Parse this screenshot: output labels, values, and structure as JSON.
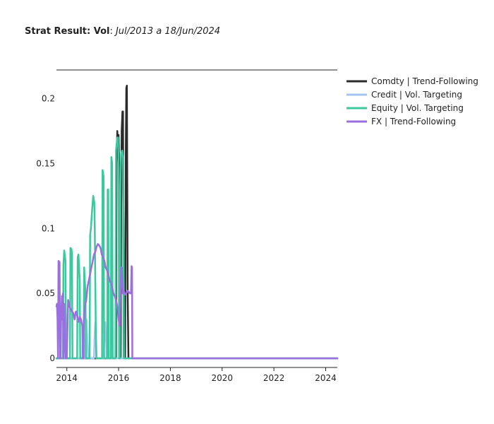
{
  "title": {
    "bold": "Strat Result: Vol",
    "separator": ": ",
    "italic": "Jul/2013 a 18/Jun/2024"
  },
  "chart_data": {
    "type": "line",
    "title": "Strat Result: Vol: Jul/2013 a 18/Jun/2024",
    "xlabel": "",
    "ylabel": "",
    "xlim": [
      2013.6,
      2024.45
    ],
    "ylim": [
      -0.007,
      0.222
    ],
    "x_ticks": [
      2014,
      2016,
      2018,
      2020,
      2022,
      2024
    ],
    "x_tick_labels": [
      "2014",
      "2016",
      "2018",
      "2020",
      "2022",
      "2024"
    ],
    "y_ticks": [
      0,
      0.05,
      0.1,
      0.15,
      0.2
    ],
    "y_tick_labels": [
      "0",
      "0.05",
      "0.1",
      "0.15",
      "0.2"
    ],
    "grid": false,
    "legend_position": "top-right",
    "series": [
      {
        "name": "Comdty | Trend-Following",
        "color": "#2b2b2b",
        "x": [
          2013.6,
          2015.9,
          2015.92,
          2015.95,
          2015.98,
          2016.0,
          2016.02,
          2016.04,
          2016.08,
          2016.1,
          2016.12,
          2016.15,
          2016.17,
          2016.2,
          2016.22,
          2016.25,
          2016.28,
          2016.3,
          2016.32,
          2016.35,
          2016.38,
          2016.4,
          2024.45
        ],
        "y": [
          0,
          0,
          0.15,
          0.175,
          0.16,
          0.172,
          0.15,
          0,
          0,
          0.11,
          0.175,
          0.19,
          0.19,
          0,
          0,
          0,
          0.16,
          0.208,
          0.21,
          0.05,
          0,
          0,
          0
        ]
      },
      {
        "name": "Credit | Vol. Targeting",
        "color": "#a6c4f0",
        "x": [
          2013.6,
          2014.7,
          2014.72,
          2014.76,
          2014.8,
          2014.82,
          2015.05,
          2015.07,
          2015.1,
          2015.13,
          2015.15,
          2015.42,
          2015.44,
          2015.48,
          2015.52,
          2015.54,
          2024.45
        ],
        "y": [
          0,
          0,
          0.012,
          0.03,
          0.012,
          0,
          0,
          0.015,
          0.028,
          0.014,
          0,
          0,
          0.012,
          0.028,
          0.012,
          0,
          0
        ]
      },
      {
        "name": "Equity | Vol. Targeting",
        "color": "#3cc89f",
        "x": [
          2013.6,
          2013.85,
          2013.87,
          2013.9,
          2013.95,
          2013.97,
          2014.12,
          2014.14,
          2014.18,
          2014.2,
          2014.22,
          2014.4,
          2014.42,
          2014.45,
          2014.5,
          2014.52,
          2014.65,
          2014.67,
          2014.72,
          2014.74,
          2014.88,
          2014.9,
          2014.93,
          2014.98,
          2015.02,
          2015.06,
          2015.08,
          2015.1,
          2015.12,
          2015.14,
          2015.36,
          2015.38,
          2015.42,
          2015.44,
          2015.56,
          2015.58,
          2015.6,
          2015.62,
          2015.7,
          2015.72,
          2015.75,
          2015.77,
          2015.88,
          2015.9,
          2015.95,
          2015.98,
          2016.0,
          2016.02,
          2016.05,
          2016.07,
          2016.08,
          2016.1,
          2016.14,
          2016.17,
          2016.19,
          2016.21,
          2016.25,
          2016.27,
          2024.45
        ],
        "y": [
          0,
          0,
          0.072,
          0.083,
          0.075,
          0,
          0,
          0.085,
          0.084,
          0.08,
          0,
          0,
          0.078,
          0.08,
          0.06,
          0,
          0,
          0.07,
          0.05,
          0,
          0,
          0.095,
          0.1,
          0.115,
          0.125,
          0.12,
          0.1,
          0.06,
          0.02,
          0,
          0,
          0.145,
          0.14,
          0,
          0,
          0.13,
          0.13,
          0,
          0,
          0.155,
          0.15,
          0,
          0,
          0.16,
          0.17,
          0.17,
          0.15,
          0,
          0,
          0.13,
          0.145,
          0.158,
          0.16,
          0.155,
          0.1,
          0,
          0,
          0,
          0
        ]
      },
      {
        "name": "FX | Trend-Following",
        "color": "#9b6fe0",
        "x": [
          2013.6,
          2013.62,
          2013.64,
          2013.66,
          2013.68,
          2013.72,
          2013.74,
          2013.76,
          2013.78,
          2013.81,
          2013.83,
          2013.85,
          2013.87,
          2013.9,
          2013.92,
          2013.95,
          2014.0,
          2014.05,
          2014.1,
          2014.15,
          2014.2,
          2014.25,
          2014.3,
          2014.35,
          2014.4,
          2014.45,
          2014.5,
          2014.55,
          2014.6,
          2014.62,
          2014.64,
          2014.66,
          2014.7,
          2014.75,
          2014.8,
          2014.85,
          2014.9,
          2014.95,
          2015.0,
          2015.05,
          2015.1,
          2015.15,
          2015.2,
          2015.25,
          2015.3,
          2015.35,
          2015.4,
          2015.45,
          2015.5,
          2015.55,
          2015.6,
          2015.65,
          2015.7,
          2015.75,
          2015.8,
          2015.85,
          2015.9,
          2015.95,
          2016.0,
          2016.05,
          2016.1,
          2016.12,
          2016.14,
          2016.16,
          2016.2,
          2016.25,
          2016.3,
          2016.35,
          2016.4,
          2016.45,
          2016.48,
          2016.5,
          2016.52,
          2016.53,
          2016.55,
          2016.58,
          2024.45
        ],
        "y": [
          0.04,
          0.042,
          0.03,
          0,
          0.075,
          0.074,
          0,
          0,
          0.03,
          0.048,
          0.03,
          0.05,
          0,
          0.042,
          0.028,
          0,
          0,
          0.045,
          0.04,
          0.038,
          0.036,
          0.035,
          0.03,
          0.036,
          0.033,
          0.028,
          0.032,
          0.03,
          0.025,
          0,
          0,
          0.03,
          0.04,
          0.045,
          0.055,
          0.06,
          0.065,
          0.07,
          0.075,
          0.08,
          0.082,
          0.086,
          0.088,
          0.087,
          0.085,
          0.08,
          0.078,
          0.075,
          0.07,
          0.068,
          0.065,
          0.06,
          0.058,
          0.055,
          0.05,
          0.048,
          0.045,
          0.04,
          0.03,
          0.025,
          0.07,
          0.07,
          0.06,
          0.05,
          0.052,
          0.049,
          0.05,
          0.052,
          0.051,
          0.05,
          0.05,
          0.071,
          0.07,
          0,
          0,
          0,
          0
        ]
      }
    ]
  }
}
